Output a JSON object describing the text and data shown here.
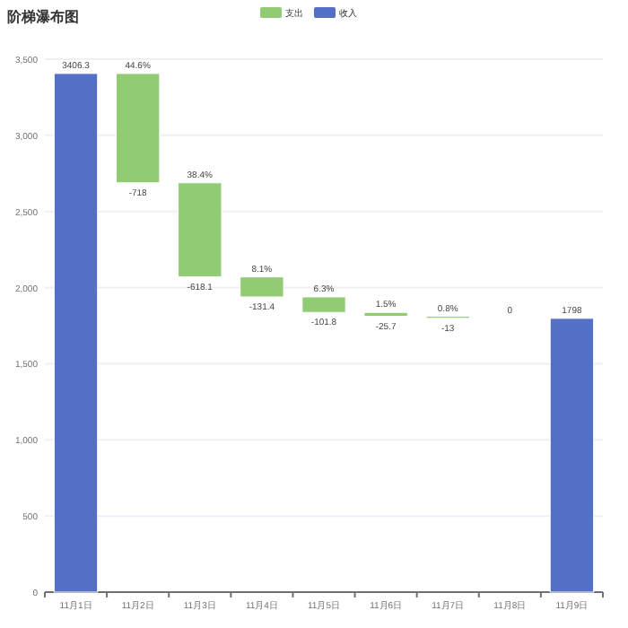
{
  "chart_data": {
    "type": "bar",
    "title": "阶梯瀑布图",
    "legend": "top",
    "categories": [
      "11月1日",
      "11月2日",
      "11月3日",
      "11月4日",
      "11月5日",
      "11月6日",
      "11月7日",
      "11月8日",
      "11月9日"
    ],
    "series": [
      {
        "name": "支出",
        "color": "#91cc75",
        "values": [
          null,
          -718,
          -618.1,
          -131.4,
          -101.8,
          -25.7,
          -13,
          0,
          null
        ],
        "base": [
          null,
          3406.3,
          2688.3,
          2070.2,
          1938.8,
          1837,
          1811.3,
          1798.3,
          null
        ],
        "value_labels": [
          null,
          "-718",
          "-618.1",
          "-131.4",
          "-101.8",
          "-25.7",
          "-13",
          "0",
          null
        ]
      },
      {
        "name": "收入",
        "color": "#5470c6",
        "values": [
          3406.3,
          null,
          null,
          null,
          null,
          null,
          null,
          null,
          1798
        ],
        "data_labels": true
      }
    ],
    "ylim": [
      0,
      3500
    ],
    "yticks": [
      0,
      {
        "value": 500,
        "label": "500"
      },
      {
        "value": 1000,
        "label": "1,000"
      },
      {
        "value": 1500,
        "label": "1,500"
      },
      {
        "value": 2000,
        "label": "2,000"
      },
      {
        "value": 2500,
        "label": "2,500"
      },
      {
        "value": 3000,
        "label": "3,000"
      },
      {
        "value": 3500,
        "label": "3,500"
      }
    ],
    "grid": "y",
    "annotations": [
      {
        "text": "44.6%",
        "x": "11月2日",
        "y": 3406.3
      },
      {
        "text": "38.4%",
        "x": "11月3日",
        "y": 2688.3
      },
      {
        "text": "8.1%",
        "x": "11月4日",
        "y": 2070.2
      },
      {
        "text": "6.3%",
        "x": "11月5日",
        "y": 1938.8
      },
      {
        "text": "1.5%",
        "x": "11月6日",
        "y": 1837
      },
      {
        "text": "0.8%",
        "x": "11月7日",
        "y": 1811.3
      }
    ]
  }
}
